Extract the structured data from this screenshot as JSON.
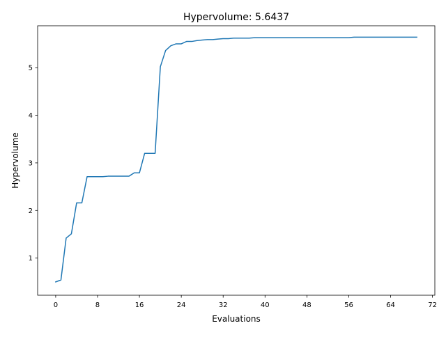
{
  "chart_data": {
    "type": "line",
    "title": "Hypervolume: 5.6437",
    "xlabel": "Evaluations",
    "ylabel": "Hypervolume",
    "xlim": [
      -3.45,
      72.45
    ],
    "ylim": [
      0.22,
      5.88
    ],
    "xticks": [
      0,
      8,
      16,
      24,
      32,
      40,
      48,
      56,
      64,
      72
    ],
    "xtick_labels": [
      "0",
      "8",
      "16",
      "24",
      "32",
      "40",
      "48",
      "56",
      "64",
      "72"
    ],
    "yticks": [
      1,
      2,
      3,
      4,
      5
    ],
    "ytick_labels": [
      "1",
      "2",
      "3",
      "4",
      "5"
    ],
    "grid": false,
    "line_color": "#1f77b4",
    "series": [
      {
        "x": [
          0,
          1,
          2,
          3,
          4,
          5,
          6,
          7,
          8,
          9,
          10,
          11,
          12,
          13,
          14,
          15,
          16,
          17,
          18,
          19,
          20,
          21,
          22,
          23,
          24,
          25,
          26,
          27,
          28,
          29,
          30,
          31,
          32,
          33,
          34,
          35,
          36,
          37,
          38,
          39,
          40,
          41,
          42,
          43,
          44,
          45,
          46,
          47,
          48,
          49,
          50,
          51,
          52,
          53,
          54,
          55,
          56,
          57,
          58,
          59,
          60,
          61,
          62,
          63,
          64,
          65,
          66,
          67,
          68,
          69
        ],
        "values": [
          0.5,
          0.54,
          1.42,
          1.51,
          2.16,
          2.16,
          2.71,
          2.71,
          2.71,
          2.71,
          2.72,
          2.72,
          2.72,
          2.72,
          2.72,
          2.79,
          2.79,
          3.2,
          3.2,
          3.2,
          5.02,
          5.36,
          5.46,
          5.5,
          5.5,
          5.55,
          5.55,
          5.57,
          5.58,
          5.59,
          5.59,
          5.6,
          5.61,
          5.61,
          5.62,
          5.62,
          5.62,
          5.62,
          5.63,
          5.63,
          5.63,
          5.63,
          5.63,
          5.63,
          5.63,
          5.63,
          5.63,
          5.63,
          5.63,
          5.63,
          5.63,
          5.63,
          5.63,
          5.63,
          5.63,
          5.63,
          5.63,
          5.64,
          5.64,
          5.64,
          5.64,
          5.64,
          5.64,
          5.64,
          5.64,
          5.64,
          5.64,
          5.64,
          5.64,
          5.64
        ]
      }
    ]
  }
}
